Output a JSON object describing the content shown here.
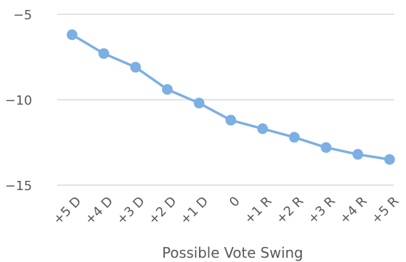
{
  "chart_data": {
    "type": "line",
    "title": "",
    "xlabel": "Possible Vote Swing",
    "ylabel": "",
    "categories": [
      "+5 D",
      "+4 D",
      "+3 D",
      "+2 D",
      "+1 D",
      "0",
      "+1 R",
      "+2 R",
      "+3 R",
      "+4 R",
      "+5 R"
    ],
    "series": [
      {
        "values": [
          -6.2,
          -7.3,
          -8.1,
          -9.4,
          -10.2,
          -11.2,
          -11.7,
          -12.2,
          -12.8,
          -13.2,
          -13.5
        ],
        "color": "#7cafe3"
      }
    ],
    "ylim": [
      -15,
      -5
    ],
    "yticks": [
      -5,
      -10,
      -15
    ],
    "ytick_labels": [
      "−5",
      "−10",
      "−15"
    ],
    "grid": true,
    "legend": "none"
  }
}
